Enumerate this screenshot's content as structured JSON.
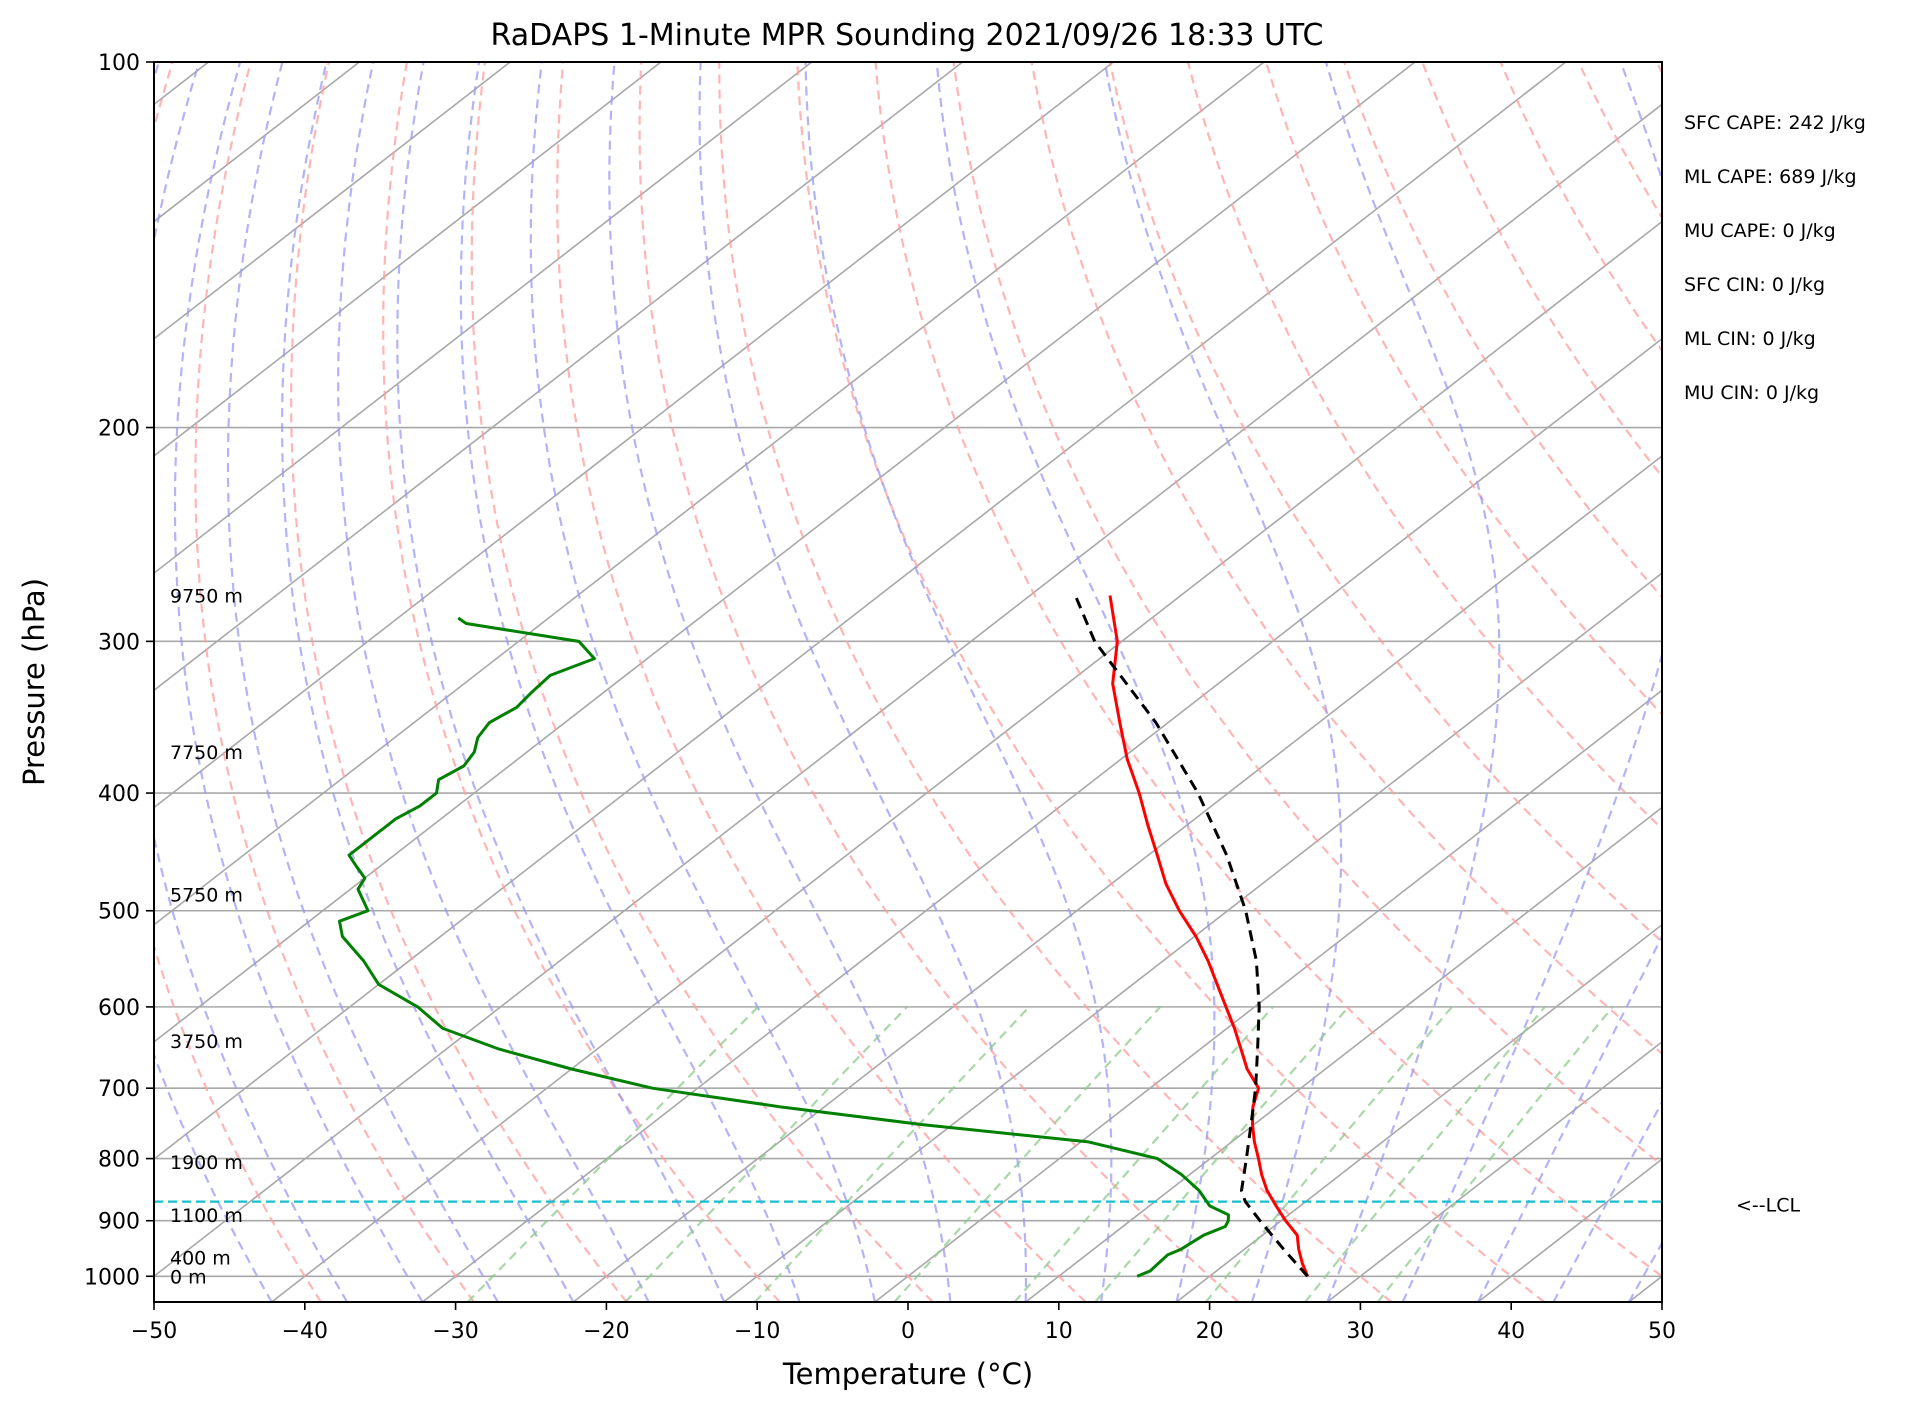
{
  "chart_data": {
    "type": "line",
    "title": "RaDAPS 1-Minute MPR Sounding 2021/09/26 18:33 UTC",
    "xlabel": "Temperature (°C)",
    "ylabel": "Pressure (hPa)",
    "xlim": [
      -50,
      50
    ],
    "ylim": [
      1050,
      100
    ],
    "y_scale": "log",
    "x_ticks": [
      -50,
      -40,
      -30,
      -20,
      -10,
      0,
      10,
      20,
      30,
      40,
      50
    ],
    "x_tick_labels": [
      "−50",
      "−40",
      "−30",
      "−20",
      "−10",
      "0",
      "10",
      "20",
      "30",
      "40",
      "50"
    ],
    "y_ticks": [
      1000,
      900,
      800,
      700,
      600,
      500,
      400,
      300,
      200,
      100
    ],
    "y_tick_labels": [
      "1000",
      "900",
      "800",
      "700",
      "600",
      "500",
      "400",
      "300",
      "200",
      "100"
    ],
    "grid": true,
    "skew_deg_per_log_p": 45,
    "series": [
      {
        "color": "#ff0000",
        "pressure": [
          1000,
          975,
          950,
          925,
          900,
          875,
          850,
          825,
          800,
          775,
          750,
          725,
          700,
          675,
          650,
          625,
          600,
          575,
          550,
          525,
          500,
          475,
          450,
          425,
          400,
          375,
          350,
          325,
          300,
          275
        ],
        "values": [
          26.5,
          25.0,
          23.6,
          22.3,
          20.3,
          18.4,
          16.5,
          14.8,
          13.2,
          11.5,
          9.9,
          8.4,
          7.2,
          4.8,
          2.7,
          0.5,
          -1.9,
          -4.4,
          -7.0,
          -9.9,
          -13.2,
          -16.4,
          -19.4,
          -22.6,
          -25.9,
          -29.6,
          -33.2,
          -37.0,
          -40.3,
          -44.7
        ]
      },
      {
        "color": "#008000",
        "pressure": [
          1000,
          990,
          975,
          960,
          950,
          925,
          910,
          900,
          890,
          875,
          850,
          825,
          800,
          775,
          750,
          725,
          700,
          675,
          650,
          625,
          600,
          575,
          550,
          525,
          510,
          500,
          480,
          470,
          460,
          450,
          440,
          430,
          420,
          410,
          400,
          390,
          380,
          370,
          360,
          350,
          340,
          330,
          320,
          310,
          300,
          290,
          287
        ],
        "values": [
          15.2,
          15.6,
          15.5,
          15.4,
          15.8,
          16.1,
          16.8,
          16.5,
          16.0,
          14.0,
          12.0,
          9.5,
          6.5,
          0.5,
          -12.0,
          -23.0,
          -33.0,
          -40.0,
          -46.5,
          -52.0,
          -55.5,
          -60.0,
          -63.0,
          -66.5,
          -68.0,
          -67.0,
          -69.5,
          -70.0,
          -71.5,
          -73.0,
          -73.0,
          -73.0,
          -73.0,
          -72.5,
          -72.5,
          -73.5,
          -73.0,
          -73.5,
          -74.5,
          -75.0,
          -74.5,
          -74.8,
          -75.0,
          -73.5,
          -76.0,
          -85.0,
          -86.0
        ]
      },
      {
        "color": "#000000",
        "dashed": true,
        "pressure": [
          1000,
          950,
          900,
          868,
          850,
          800,
          750,
          700,
          650,
          600,
          550,
          500,
          450,
          400,
          350,
          300,
          275
        ],
        "values": [
          26.5,
          22.6,
          18.6,
          16.0,
          14.8,
          12.4,
          9.8,
          7.0,
          3.8,
          0.3,
          -3.8,
          -8.8,
          -14.8,
          -22.0,
          -30.8,
          -41.8,
          -47.0
        ]
      }
    ],
    "lcl_pressure": 868,
    "lcl_label": "<--LCL",
    "height_labels": [
      {
        "label": "0 m",
        "pressure": 1000
      },
      {
        "label": "400 m",
        "pressure": 965
      },
      {
        "label": "1100 m",
        "pressure": 890
      },
      {
        "label": "1900 m",
        "pressure": 805
      },
      {
        "label": "3750 m",
        "pressure": 640
      },
      {
        "label": "5750 m",
        "pressure": 485
      },
      {
        "label": "7750 m",
        "pressure": 370
      },
      {
        "label": "9750 m",
        "pressure": 275
      }
    ],
    "stats": [
      "SFC CAPE: 242 J/kg",
      "ML CAPE: 689 J/kg",
      "MU CAPE: 0 J/kg",
      "SFC CIN: 0 J/kg",
      "ML CIN: 0 J/kg",
      "MU CIN: 0 J/kg"
    ],
    "colors": {
      "isotherm": "#a8a8a8",
      "isobar": "#a8a8a8",
      "dry_adiabat": "#ff9c9c",
      "moist_adiabat": "#9a9af5",
      "mixing_ratio": "#8ec98e",
      "lcl": "#17bfcf"
    }
  }
}
